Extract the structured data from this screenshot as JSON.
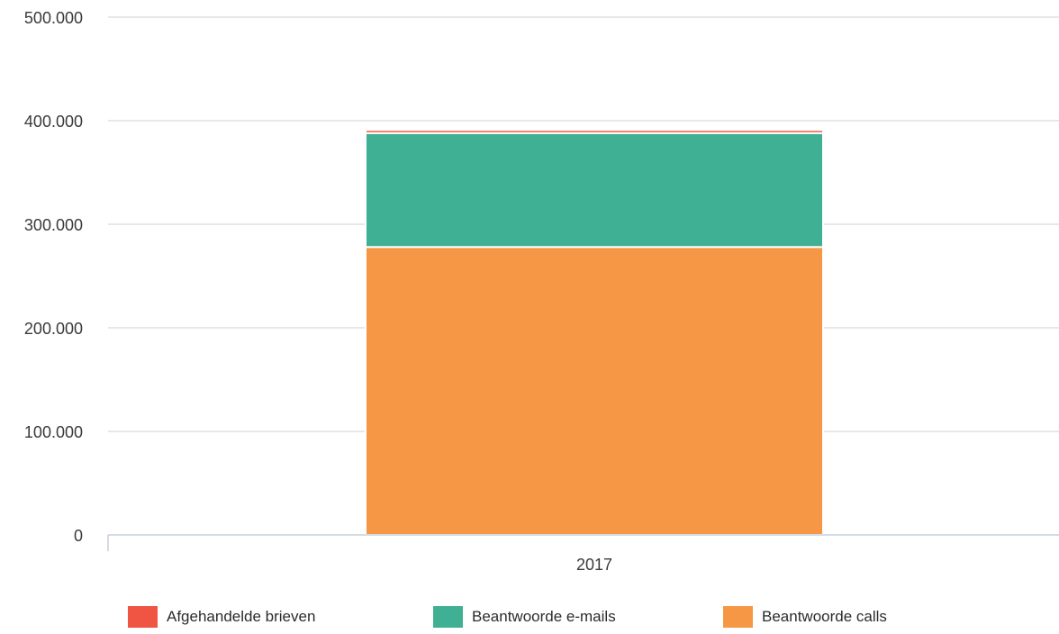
{
  "chart_data": {
    "type": "bar",
    "stacked": true,
    "categories": [
      "2017"
    ],
    "series": [
      {
        "name": "Beantwoorde calls",
        "values": [
          278000
        ],
        "color": "#f59744"
      },
      {
        "name": "Beantwoorde e-mails",
        "values": [
          110000
        ],
        "color": "#3fb094"
      },
      {
        "name": "Afgehandelde brieven",
        "values": [
          3000
        ],
        "color": "#f05443"
      }
    ],
    "title": "",
    "xlabel": "",
    "ylabel": "",
    "ylim": [
      0,
      500000
    ],
    "y_ticks": [
      "0",
      "100.000",
      "200.000",
      "300.000",
      "400.000",
      "500.000"
    ],
    "grid": true,
    "legend_position": "bottom",
    "legend_order": [
      "Afgehandelde brieven",
      "Beantwoorde e-mails",
      "Beantwoorde calls"
    ]
  }
}
